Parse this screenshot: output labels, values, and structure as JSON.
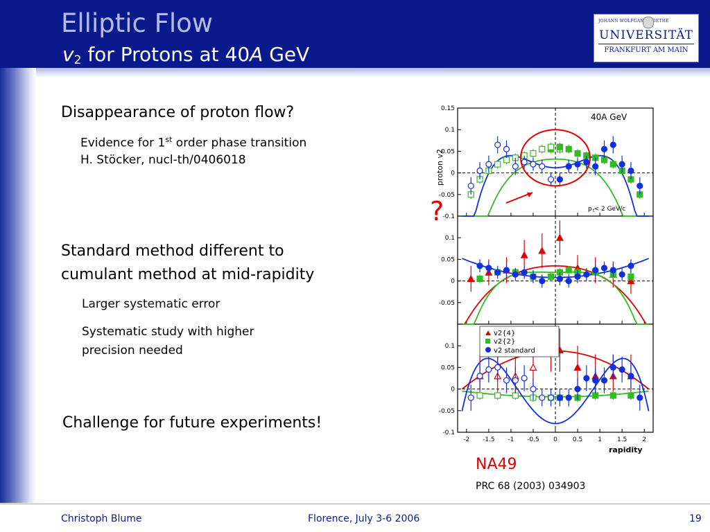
{
  "header": {
    "title": "Elliptic Flow",
    "subtitle_v": "v",
    "subtitle_sub": "2",
    "subtitle_mid": " for Protons at 40",
    "subtitle_A": "A",
    "subtitle_end": " GeV"
  },
  "logo": {
    "line1": "JOHANN WOLFGANG GOETHE",
    "line2": "UNIVERSITÄT",
    "line3": "FRANKFURT AM MAIN"
  },
  "bullets": {
    "b1": "Disappearance of proton flow?",
    "b1_s1_pre": "Evidence for 1",
    "b1_s1_sup": "st",
    "b1_s1_post": " order phase transition",
    "b1_s2": "H. Stöcker, nucl-th/0406018",
    "b2_line1": "Standard method different to",
    "b2_line2": "cumulant method at mid-rapidity",
    "b2_s1": "Larger systematic error",
    "b2_s2_line1": "Systematic study with higher",
    "b2_s2_line2": "precision needed",
    "b3": "Challenge for future experiments!"
  },
  "annotation": {
    "question_mark": "?",
    "experiment": "NA49",
    "reference": "PRC 68 (2003) 034903"
  },
  "footer": {
    "author": "Christoph Blume",
    "venue": "Florence, July 3-6 2006",
    "page": "19"
  },
  "colors": {
    "header_bg": "#0a1a8c",
    "v2_4": "#e00000",
    "v2_2": "#33bb22",
    "v2_standard": "#1030e0"
  },
  "chart_data": {
    "type": "scatter",
    "ylabel": "proton v2",
    "xlabel": "rapidity",
    "xlim": [
      -2.2,
      2.2
    ],
    "x_ticks": [
      "-2",
      "-1.5",
      "-1",
      "-0.5",
      "0",
      "0.5",
      "1",
      "1.5",
      "2"
    ],
    "panel_label": "40A   GeV",
    "cut_label": "p   < 2 GeV/c",
    "cut_sub": "t",
    "legend": {
      "entries": [
        "v2{4}",
        "v2{2}",
        "v2 standard"
      ]
    },
    "panels": [
      {
        "ylim": [
          -0.1,
          0.15
        ],
        "y_ticks": [
          "0.15",
          "0.1",
          "0.05",
          "0",
          "-0.05",
          "-0.1"
        ],
        "series": [
          {
            "key": "v2_2",
            "marker": "square",
            "x": [
              -0.1,
              0.1,
              0.3,
              0.5,
              0.7,
              0.9,
              1.1,
              1.3,
              1.5,
              1.7,
              1.9
            ],
            "y": [
              0.055,
              0.06,
              0.055,
              0.045,
              0.04,
              0.035,
              0.03,
              0.02,
              0.005,
              -0.015,
              -0.05
            ],
            "err": [
              0.01,
              0.01,
              0.01,
              0.01,
              0.01,
              0.01,
              0.01,
              0.01,
              0.01,
              0.01,
              0.01
            ],
            "mirror": true
          },
          {
            "key": "v2_standard",
            "marker": "circle",
            "x": [
              0.1,
              0.3,
              0.5,
              0.7,
              0.9,
              1.1,
              1.3,
              1.5,
              1.7,
              1.9
            ],
            "y": [
              -0.015,
              0.015,
              0.02,
              0.025,
              0.015,
              0.055,
              0.065,
              0.02,
              0.005,
              -0.03
            ],
            "err": [
              0.015,
              0.015,
              0.015,
              0.015,
              0.02,
              0.02,
              0.02,
              0.02,
              0.02,
              0.02
            ],
            "mirror": true
          }
        ],
        "fits": [
          {
            "key": "v2_2",
            "a": 0.032,
            "b": -0.025,
            "c": -0.014
          },
          {
            "key": "v2_standard",
            "a": 0.012,
            "b": 0.055,
            "c": -0.027
          }
        ],
        "circle": {
          "x": 0.0,
          "y": 0.035,
          "rx": 0.78,
          "ry": 0.065
        }
      },
      {
        "ylim": [
          -0.1,
          0.15
        ],
        "y_ticks": [
          "0.1",
          "0.05",
          "0",
          "-0.05"
        ],
        "series": [
          {
            "key": "v2_4",
            "marker": "triangle",
            "x": [
              -1.9,
              -1.5,
              -1.1,
              -0.7,
              -0.3,
              0.1,
              0.5,
              0.9,
              1.3,
              1.7
            ],
            "y": [
              0.005,
              0.02,
              0.025,
              0.06,
              0.07,
              0.1,
              0.03,
              0.025,
              0.015,
              0.0
            ],
            "err": [
              0.03,
              0.03,
              0.03,
              0.035,
              0.04,
              0.04,
              0.03,
              0.03,
              0.03,
              0.03
            ],
            "mirror": false
          },
          {
            "key": "v2_2",
            "marker": "square",
            "x": [
              -1.7,
              -1.3,
              -0.9,
              -0.5,
              -0.1,
              0.1,
              0.3,
              0.5,
              0.9,
              1.3,
              1.7
            ],
            "y": [
              0.005,
              0.02,
              0.02,
              0.01,
              0.01,
              0.02,
              0.025,
              0.02,
              0.02,
              0.015,
              0.01
            ],
            "err": [
              0.01,
              0.01,
              0.01,
              0.01,
              0.01,
              0.01,
              0.01,
              0.01,
              0.01,
              0.01,
              0.01
            ],
            "mirror": false
          },
          {
            "key": "v2_standard",
            "marker": "circle",
            "x": [
              -1.7,
              -1.5,
              -1.3,
              -1.1,
              -0.9,
              -0.7,
              -0.5,
              -0.3,
              0.1,
              0.3,
              0.5,
              0.7,
              0.9,
              1.1,
              1.3,
              1.5,
              1.7
            ],
            "y": [
              0.035,
              0.03,
              0.02,
              0.025,
              0.015,
              0.02,
              0.01,
              0.0,
              0.005,
              0.0,
              0.01,
              0.015,
              0.025,
              0.03,
              0.025,
              0.015,
              0.035
            ],
            "err": [
              0.015,
              0.015,
              0.015,
              0.015,
              0.015,
              0.015,
              0.015,
              0.015,
              0.015,
              0.015,
              0.015,
              0.015,
              0.015,
              0.015,
              0.015,
              0.015,
              0.015
            ],
            "mirror": false
          }
        ],
        "fits": [
          {
            "key": "v2_4",
            "a": 0.035,
            "b": -0.02,
            "c": -0.003
          },
          {
            "key": "v2_2",
            "a": 0.02,
            "b": 0.004,
            "c": -0.012
          },
          {
            "key": "v2_standard",
            "a": 0.008,
            "b": 0.01,
            "c": 0.0
          }
        ]
      },
      {
        "ylim": [
          -0.1,
          0.15
        ],
        "y_ticks": [
          "0.1",
          "0.05",
          "0",
          "-0.05",
          "-0.1"
        ],
        "series": [
          {
            "key": "v2_4",
            "marker": "triangle",
            "x": [
              0.1,
              0.5,
              0.9,
              1.3,
              1.7
            ],
            "y": [
              0.09,
              0.05,
              0.03,
              0.03,
              0.03
            ],
            "err": [
              0.05,
              0.05,
              0.05,
              0.05,
              0.05
            ],
            "mirror": true
          },
          {
            "key": "v2_2",
            "marker": "square",
            "x": [
              0.1,
              0.5,
              0.9,
              1.3,
              1.7
            ],
            "y": [
              -0.02,
              -0.02,
              -0.015,
              -0.015,
              -0.015
            ],
            "err": [
              0.01,
              0.01,
              0.01,
              0.01,
              0.01
            ],
            "mirror": true
          },
          {
            "key": "v2_standard",
            "marker": "circle",
            "x": [
              0.1,
              0.3,
              0.5,
              0.7,
              0.9,
              1.1,
              1.3,
              1.5,
              1.7,
              1.9
            ],
            "y": [
              -0.02,
              -0.02,
              0.0,
              0.025,
              0.02,
              0.02,
              0.05,
              0.045,
              0.03,
              -0.02
            ],
            "err": [
              0.02,
              0.02,
              0.025,
              0.03,
              0.03,
              0.03,
              0.03,
              0.03,
              0.03,
              0.03
            ],
            "mirror": true
          }
        ],
        "fits": [
          {
            "key": "v2_4",
            "a": 0.088,
            "b": -0.02,
            "c": 0.0
          },
          {
            "key": "v2_2",
            "a": -0.018,
            "b": 0.003,
            "c": 0.0
          },
          {
            "key": "v2_standard",
            "a": -0.08,
            "b": 0.13,
            "c": -0.028
          }
        ]
      }
    ]
  }
}
